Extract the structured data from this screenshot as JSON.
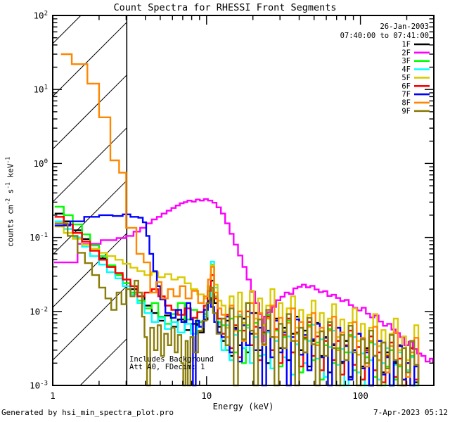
{
  "header": {
    "title": "Count Spectra for RHESSI Front Segments",
    "date": "26-Jan-2003",
    "time_range": "07:40:00 to 07:41:00"
  },
  "annotations": {
    "line1": "Includes Background",
    "line2": "Att A0, FDecim: 1"
  },
  "footer": {
    "left": "Generated by hsi_min_spectra_plot.pro",
    "right": "7-Apr-2023 05:12"
  },
  "chart_data": {
    "type": "line",
    "scale": "log-log",
    "step_mode": true,
    "title": "Count Spectra for RHESSI Front Segments",
    "xlabel": "Energy (keV)",
    "ylabel": "counts cm^-2 s^-1 keV^-1",
    "ylabel_parts": [
      {
        "t": "counts cm"
      },
      {
        "s": "-2"
      },
      {
        "t": " s"
      },
      {
        "s": "-1"
      },
      {
        "t": " keV"
      },
      {
        "s": "-1"
      }
    ],
    "xlim": [
      1,
      300
    ],
    "ylim": [
      0.001,
      100
    ],
    "x_ticks": [
      {
        "value": 1,
        "label": "1"
      },
      {
        "value": 10,
        "label": "10"
      },
      {
        "value": 100,
        "label": "100"
      }
    ],
    "y_tick_exponents": [
      2,
      1,
      0,
      -1,
      -2,
      -3
    ],
    "grid": false,
    "legend_position": "top-right-inside",
    "hatch_region": {
      "x_from": 1,
      "x_to": 3.03
    },
    "noise_x": [
      12.5,
      13.3,
      14.1,
      15,
      16,
      17,
      18,
      19.1,
      20.3,
      21.6,
      23,
      24.4,
      26,
      27.6,
      29.4,
      31.2,
      33.2,
      35.3,
      37.6,
      40,
      42.5,
      45.2,
      48.1,
      51.1,
      54.4,
      57.8,
      61.5,
      65.4,
      69.5,
      74,
      78.7,
      83.7,
      89,
      94.6,
      100.6,
      107,
      113.8,
      121,
      128.7,
      136.9,
      145.6,
      154.8,
      164.6,
      175.1,
      186.2,
      198,
      210.6,
      224,
      238
    ],
    "series": [
      {
        "name": "1F",
        "color": "#000000",
        "x": [
          1.03,
          1.18,
          1.35,
          1.55,
          1.75,
          2.0,
          2.25,
          2.55,
          2.85,
          3.2,
          3.55,
          3.95,
          4.4,
          4.85,
          5.35,
          5.9,
          6.5,
          7.2,
          7.9,
          8.7,
          9.6,
          10.15,
          10.65,
          11.2,
          11.8
        ],
        "v": [
          0.21,
          0.165,
          0.125,
          0.095,
          0.07,
          0.052,
          0.04,
          0.031,
          0.024,
          0.02,
          0.016,
          0.012,
          0.0095,
          0.0075,
          0.0088,
          0.0062,
          0.0078,
          0.0056,
          0.0068,
          0.0052,
          0.0078,
          0.014,
          0.026,
          0.013,
          0.0062
        ],
        "noise_v": [
          0.004,
          0.0075,
          0.0025,
          0.006,
          0.0035,
          0.008,
          0.0028,
          0.005,
          0.0095,
          0.003,
          0.0065,
          0.002,
          0.0045,
          0.008,
          0.0032,
          0.006,
          0.0022,
          0.005,
          0.0085,
          0.003,
          0.0055,
          0.0018,
          0.004,
          0.007,
          0.0025,
          0.0045,
          0.0015,
          0.0035,
          0.006,
          0.002,
          0.004,
          0.0013,
          0.003,
          0.005,
          0.0018,
          0.0032,
          0.001,
          0.0025,
          0.004,
          0.0015,
          0.0028,
          0.001,
          0.002,
          0.0035,
          0.0012,
          0.002,
          0.0032,
          0.0011,
          0.0018
        ]
      },
      {
        "name": "2F",
        "color": "#ff00ff",
        "x": [
          1.02,
          1.45,
          2.05,
          2.6,
          3.0,
          3.35,
          3.7,
          4.05,
          4.4,
          4.75,
          5.1,
          5.5,
          5.9,
          6.3,
          6.7,
          7.1,
          7.5,
          8.0,
          8.5,
          9.05,
          9.6,
          10.2,
          10.9,
          11.6,
          12.4,
          13.2,
          14.1,
          15.0,
          16.0,
          17.1,
          18.2,
          19.4,
          20.7,
          22.0,
          22.8,
          23.6,
          25.0,
          26.6,
          28.3,
          30.2,
          32.2,
          34.3,
          36.6,
          39.0,
          41.6,
          44.3,
          47.2,
          50.3,
          53.6,
          57.2,
          61.0,
          65.0,
          69.3,
          73.9,
          78.8,
          84.0,
          89.5,
          95.4,
          101.7,
          108.4,
          115.6,
          123.2,
          131.3,
          140.0,
          149.2,
          159.0,
          169.5,
          180.7,
          192.6,
          205.3,
          218.8,
          233.3,
          248.7,
          265.1,
          282.5,
          295.0
        ],
        "v": [
          0.046,
          0.082,
          0.092,
          0.098,
          0.105,
          0.12,
          0.135,
          0.155,
          0.175,
          0.19,
          0.21,
          0.23,
          0.25,
          0.27,
          0.29,
          0.3,
          0.315,
          0.305,
          0.325,
          0.315,
          0.33,
          0.315,
          0.295,
          0.255,
          0.21,
          0.155,
          0.112,
          0.08,
          0.057,
          0.04,
          0.027,
          0.0185,
          0.013,
          0.0092,
          0.0039,
          0.0085,
          0.0098,
          0.0115,
          0.0142,
          0.0158,
          0.018,
          0.0172,
          0.0205,
          0.0215,
          0.023,
          0.0212,
          0.0222,
          0.0198,
          0.0182,
          0.0188,
          0.0162,
          0.0168,
          0.0152,
          0.0138,
          0.0143,
          0.0122,
          0.0112,
          0.0103,
          0.0112,
          0.0093,
          0.0083,
          0.0088,
          0.0073,
          0.0064,
          0.0068,
          0.0057,
          0.0051,
          0.0045,
          0.0035,
          0.0039,
          0.0031,
          0.0027,
          0.0025,
          0.0021,
          0.0023,
          0.002
        ]
      },
      {
        "name": "3F",
        "color": "#00ff00",
        "x": [
          1.03,
          1.18,
          1.35,
          1.55,
          1.75,
          2.0,
          2.25,
          2.55,
          2.85,
          3.2,
          3.55,
          3.95,
          4.4,
          4.85,
          5.35,
          5.9,
          6.5,
          7.2,
          7.9,
          8.7,
          9.6,
          10.15,
          10.65,
          11.2,
          11.8
        ],
        "v": [
          0.26,
          0.2,
          0.15,
          0.11,
          0.078,
          0.056,
          0.042,
          0.031,
          0.024,
          0.018,
          0.014,
          0.011,
          0.013,
          0.0085,
          0.0068,
          0.0092,
          0.013,
          0.0078,
          0.0105,
          0.0072,
          0.0092,
          0.022,
          0.043,
          0.016,
          0.0072
        ],
        "noise_v": [
          0.0065,
          0.003,
          0.008,
          0.0028,
          0.0055,
          0.002,
          0.0065,
          0.0035,
          0.007,
          0.0025,
          0.005,
          0.009,
          0.003,
          0.0055,
          0.0018,
          0.0045,
          0.0075,
          0.0028,
          0.005,
          0.0015,
          0.0042,
          0.0065,
          0.0022,
          0.0038,
          0.0012,
          0.0035,
          0.0058,
          0.002,
          0.0032,
          0.001,
          0.0028,
          0.0048,
          0.0016,
          0.0026,
          0.001,
          0.0024,
          0.0038,
          0.0013,
          0.0022,
          0.001,
          0.0018,
          0.003,
          0.0012,
          0.0018,
          0.001,
          0.0016,
          0.0025,
          0.001,
          0.0015
        ]
      },
      {
        "name": "4F",
        "color": "#00ffff",
        "x": [
          1.03,
          1.18,
          1.35,
          1.55,
          1.75,
          2.0,
          2.25,
          2.55,
          2.85,
          3.2,
          3.55,
          3.95,
          4.4,
          4.85,
          5.35,
          5.9,
          6.5,
          7.2,
          7.9,
          8.7,
          9.6,
          10.15,
          10.65,
          11.2,
          11.8
        ],
        "v": [
          0.165,
          0.13,
          0.1,
          0.075,
          0.056,
          0.043,
          0.034,
          0.028,
          0.022,
          0.017,
          0.013,
          0.0095,
          0.0072,
          0.0082,
          0.0058,
          0.0072,
          0.0052,
          0.0068,
          0.005,
          0.0062,
          0.0085,
          0.016,
          0.047,
          0.021,
          0.0068
        ],
        "noise_v": [
          0.003,
          0.0065,
          0.0022,
          0.0048,
          0.009,
          0.0032,
          0.006,
          0.002,
          0.0045,
          0.0078,
          0.0026,
          0.0052,
          0.0017,
          0.004,
          0.0068,
          0.0024,
          0.0046,
          0.0014,
          0.0036,
          0.006,
          0.002,
          0.004,
          0.0066,
          0.0023,
          0.0042,
          0.0013,
          0.0033,
          0.0055,
          0.0019,
          0.0031,
          0.001,
          0.0028,
          0.0045,
          0.0015,
          0.0027,
          0.001,
          0.0022,
          0.0036,
          0.0012,
          0.002,
          0.0032,
          0.001,
          0.0019,
          0.0028,
          0.001,
          0.0016,
          0.0024,
          0.001,
          0.0014
        ]
      },
      {
        "name": "5F",
        "color": "#d9cb00",
        "x": [
          1.03,
          1.18,
          1.35,
          1.55,
          1.75,
          2.0,
          2.25,
          2.55,
          2.85,
          3.2,
          3.55,
          3.95,
          4.4,
          4.85,
          5.35,
          5.9,
          6.5,
          7.2,
          7.9,
          8.7,
          9.6,
          10.15,
          10.65,
          11.2,
          11.8
        ],
        "v": [
          0.14,
          0.115,
          0.096,
          0.08,
          0.07,
          0.062,
          0.056,
          0.05,
          0.044,
          0.039,
          0.035,
          0.031,
          0.034,
          0.029,
          0.032,
          0.027,
          0.029,
          0.024,
          0.02,
          0.017,
          0.015,
          0.022,
          0.042,
          0.023,
          0.014
        ],
        "noise_v": [
          0.012,
          0.006,
          0.016,
          0.0085,
          0.018,
          0.007,
          0.013,
          0.019,
          0.008,
          0.015,
          0.0065,
          0.012,
          0.02,
          0.0075,
          0.013,
          0.0055,
          0.011,
          0.016,
          0.006,
          0.0105,
          0.0045,
          0.009,
          0.014,
          0.0052,
          0.0095,
          0.004,
          0.008,
          0.0125,
          0.0045,
          0.0078,
          0.0035,
          0.007,
          0.011,
          0.004,
          0.0068,
          0.003,
          0.006,
          0.0092,
          0.0034,
          0.0056,
          0.0026,
          0.005,
          0.008,
          0.003,
          0.0046,
          0.0022,
          0.004,
          0.0065,
          0.0026
        ]
      },
      {
        "name": "6F",
        "color": "#ff0000",
        "x": [
          1.03,
          1.18,
          1.35,
          1.55,
          1.75,
          2.0,
          2.25,
          2.55,
          2.85,
          3.2,
          3.55,
          3.95,
          4.4,
          4.85,
          5.35,
          5.9,
          6.5,
          7.2,
          7.9,
          8.7,
          9.6,
          10.15,
          10.65,
          11.2,
          11.8
        ],
        "v": [
          0.19,
          0.15,
          0.115,
          0.088,
          0.066,
          0.05,
          0.04,
          0.033,
          0.027,
          0.022,
          0.016,
          0.018,
          0.02,
          0.016,
          0.012,
          0.0105,
          0.009,
          0.011,
          0.0082,
          0.0098,
          0.012,
          0.019,
          0.031,
          0.015,
          0.008
        ],
        "noise_v": [
          0.005,
          0.009,
          0.0032,
          0.0065,
          0.0024,
          0.0055,
          0.01,
          0.0035,
          0.0062,
          0.0022,
          0.0052,
          0.0085,
          0.003,
          0.0058,
          0.002,
          0.0048,
          0.008,
          0.0028,
          0.0052,
          0.0018,
          0.0044,
          0.0072,
          0.0025,
          0.0046,
          0.0016,
          0.004,
          0.0065,
          0.0022,
          0.004,
          0.0014,
          0.0035,
          0.0055,
          0.0019,
          0.0033,
          0.0012,
          0.003,
          0.0046,
          0.0016,
          0.0028,
          0.0011,
          0.0025,
          0.0038,
          0.0013,
          0.0023,
          0.001,
          0.002,
          0.0032,
          0.0012,
          0.0019
        ]
      },
      {
        "name": "7F",
        "color": "#0000ff",
        "x": [
          1.03,
          1.3,
          1.6,
          2.0,
          2.45,
          2.85,
          3.2,
          3.6,
          3.85,
          4.05,
          4.25,
          4.5,
          4.75,
          5.0,
          5.4,
          5.85,
          6.3,
          6.85,
          7.4,
          7.85,
          8.15,
          8.5,
          8.95,
          9.6,
          10.2,
          10.65,
          11.2,
          11.8
        ],
        "v": [
          0.145,
          0.165,
          0.19,
          0.2,
          0.195,
          0.205,
          0.19,
          0.185,
          0.16,
          0.105,
          0.06,
          0.035,
          0.022,
          0.0145,
          0.0095,
          0.0082,
          0.0105,
          0.0072,
          0.013,
          0.0078,
          0.001,
          0.0075,
          0.0062,
          0.0105,
          0.0135,
          0.0115,
          0.0072,
          0.0052
        ],
        "noise_v": [
          0.0045,
          0.0085,
          0.0028,
          0.0058,
          0.0021,
          0.0065,
          0.0035,
          0.0095,
          0.003,
          0.006,
          0.001,
          0.0055,
          0.0024,
          0.0075,
          0.0028,
          0.0052,
          0.001,
          0.0045,
          0.0078,
          0.0026,
          0.0048,
          0.0016,
          0.0042,
          0.0068,
          0.0024,
          0.0044,
          0.001,
          0.0036,
          0.006,
          0.0021,
          0.0034,
          0.0012,
          0.003,
          0.005,
          0.0017,
          0.0028,
          0.001,
          0.0025,
          0.004,
          0.0014,
          0.0024,
          0.001,
          0.0021,
          0.0034,
          0.0012,
          0.002,
          0.001,
          0.0018,
          0.0028
        ]
      },
      {
        "name": "8F",
        "color": "#ff8700",
        "x": [
          1.13,
          1.33,
          1.68,
          2.0,
          2.37,
          2.7,
          3.0,
          3.5,
          3.9,
          4.3,
          4.7,
          5.1,
          5.6,
          6.1,
          6.7,
          7.3,
          8.0,
          8.8,
          9.6,
          10.2,
          10.7,
          11.2,
          11.8
        ],
        "v": [
          30,
          22,
          12,
          4.2,
          1.1,
          0.75,
          0.135,
          0.06,
          0.046,
          0.018,
          0.025,
          0.015,
          0.02,
          0.016,
          0.022,
          0.015,
          0.019,
          0.013,
          0.016,
          0.027,
          0.04,
          0.018,
          0.011
        ],
        "noise_v": [
          0.009,
          0.0045,
          0.012,
          0.0055,
          0.01,
          0.004,
          0.0085,
          0.013,
          0.005,
          0.0095,
          0.0035,
          0.008,
          0.012,
          0.0045,
          0.0082,
          0.0032,
          0.007,
          0.011,
          0.004,
          0.0072,
          0.0028,
          0.0062,
          0.0095,
          0.0035,
          0.006,
          0.0025,
          0.0055,
          0.0085,
          0.003,
          0.0052,
          0.0022,
          0.0046,
          0.0072,
          0.0026,
          0.0044,
          0.0018,
          0.004,
          0.0062,
          0.0022,
          0.0038,
          0.0015,
          0.0034,
          0.0052,
          0.0019,
          0.0032,
          0.0013,
          0.0028,
          0.0044,
          0.0016
        ]
      },
      {
        "name": "9F",
        "color": "#8a7d08",
        "x": [
          1.03,
          1.25,
          1.45,
          1.62,
          1.8,
          2.0,
          2.2,
          2.4,
          2.6,
          2.8,
          3.0,
          3.2,
          3.4,
          3.6,
          3.8,
          3.95,
          4.1,
          4.3,
          4.55,
          4.8,
          5.05,
          5.3,
          5.6,
          5.9,
          6.2,
          6.5,
          6.85,
          7.05,
          7.3,
          7.55,
          7.85,
          8.25,
          8.8,
          9.4,
          10.0,
          10.5,
          11.0,
          11.6
        ],
        "v": [
          0.155,
          0.105,
          0.062,
          0.045,
          0.031,
          0.021,
          0.015,
          0.0105,
          0.018,
          0.0125,
          0.02,
          0.016,
          0.026,
          0.018,
          0.0085,
          0.0045,
          0.001,
          0.006,
          0.003,
          0.0065,
          0.0025,
          0.005,
          0.0035,
          0.006,
          0.0028,
          0.0048,
          0.002,
          0.001,
          0.004,
          0.001,
          0.0045,
          0.0028,
          0.0055,
          0.0075,
          0.013,
          0.021,
          0.0095,
          0.005
        ],
        "noise_v": [
          0.008,
          0.0035,
          0.011,
          0.001,
          0.0085,
          0.0042,
          0.013,
          0.0055,
          0.001,
          0.0078,
          0.0036,
          0.0105,
          0.0045,
          0.001,
          0.0068,
          0.0032,
          0.0092,
          0.004,
          0.001,
          0.006,
          0.0028,
          0.0082,
          0.0036,
          0.001,
          0.0054,
          0.0025,
          0.0072,
          0.0032,
          0.001,
          0.0048,
          0.0022,
          0.0064,
          0.0028,
          0.001,
          0.0042,
          0.002,
          0.0055,
          0.0025,
          0.001,
          0.0038,
          0.0017,
          0.0048,
          0.0022,
          0.001,
          0.0032,
          0.0015,
          0.004,
          0.0019,
          0.001
        ]
      }
    ]
  }
}
